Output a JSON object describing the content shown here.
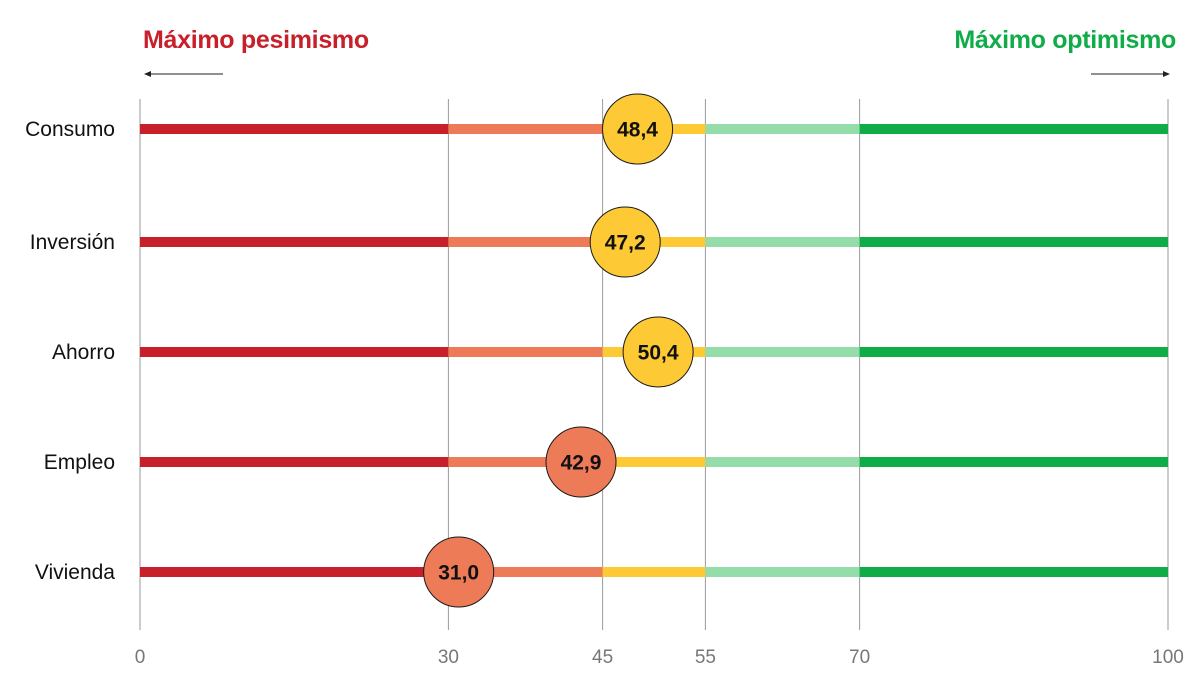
{
  "header": {
    "left_label": "Máximo pesimismo",
    "right_label": "Máximo optimismo",
    "left_color": "#c8202b",
    "right_color": "#10ac48"
  },
  "chart_data": {
    "type": "dot-scale",
    "xlim": [
      0,
      100
    ],
    "ticks": [
      0,
      30,
      45,
      55,
      70,
      100
    ],
    "tick_labels": [
      "0",
      "30",
      "45",
      "55",
      "70",
      "100"
    ],
    "bands": [
      {
        "from": 0,
        "to": 30,
        "color": "#c8202b"
      },
      {
        "from": 30,
        "to": 45,
        "color": "#ee7b57"
      },
      {
        "from": 45,
        "to": 55,
        "color": "#fdc935"
      },
      {
        "from": 55,
        "to": 70,
        "color": "#95dcab"
      },
      {
        "from": 70,
        "to": 100,
        "color": "#10ac48"
      }
    ],
    "categories": [
      "Consumo",
      "Inversión",
      "Ahorro",
      "Empleo",
      "Vivienda"
    ],
    "values": [
      48.4,
      47.2,
      50.4,
      42.9,
      31.0
    ],
    "value_labels": [
      "48,4",
      "47,2",
      "50,4",
      "42,9",
      "31,0"
    ]
  }
}
